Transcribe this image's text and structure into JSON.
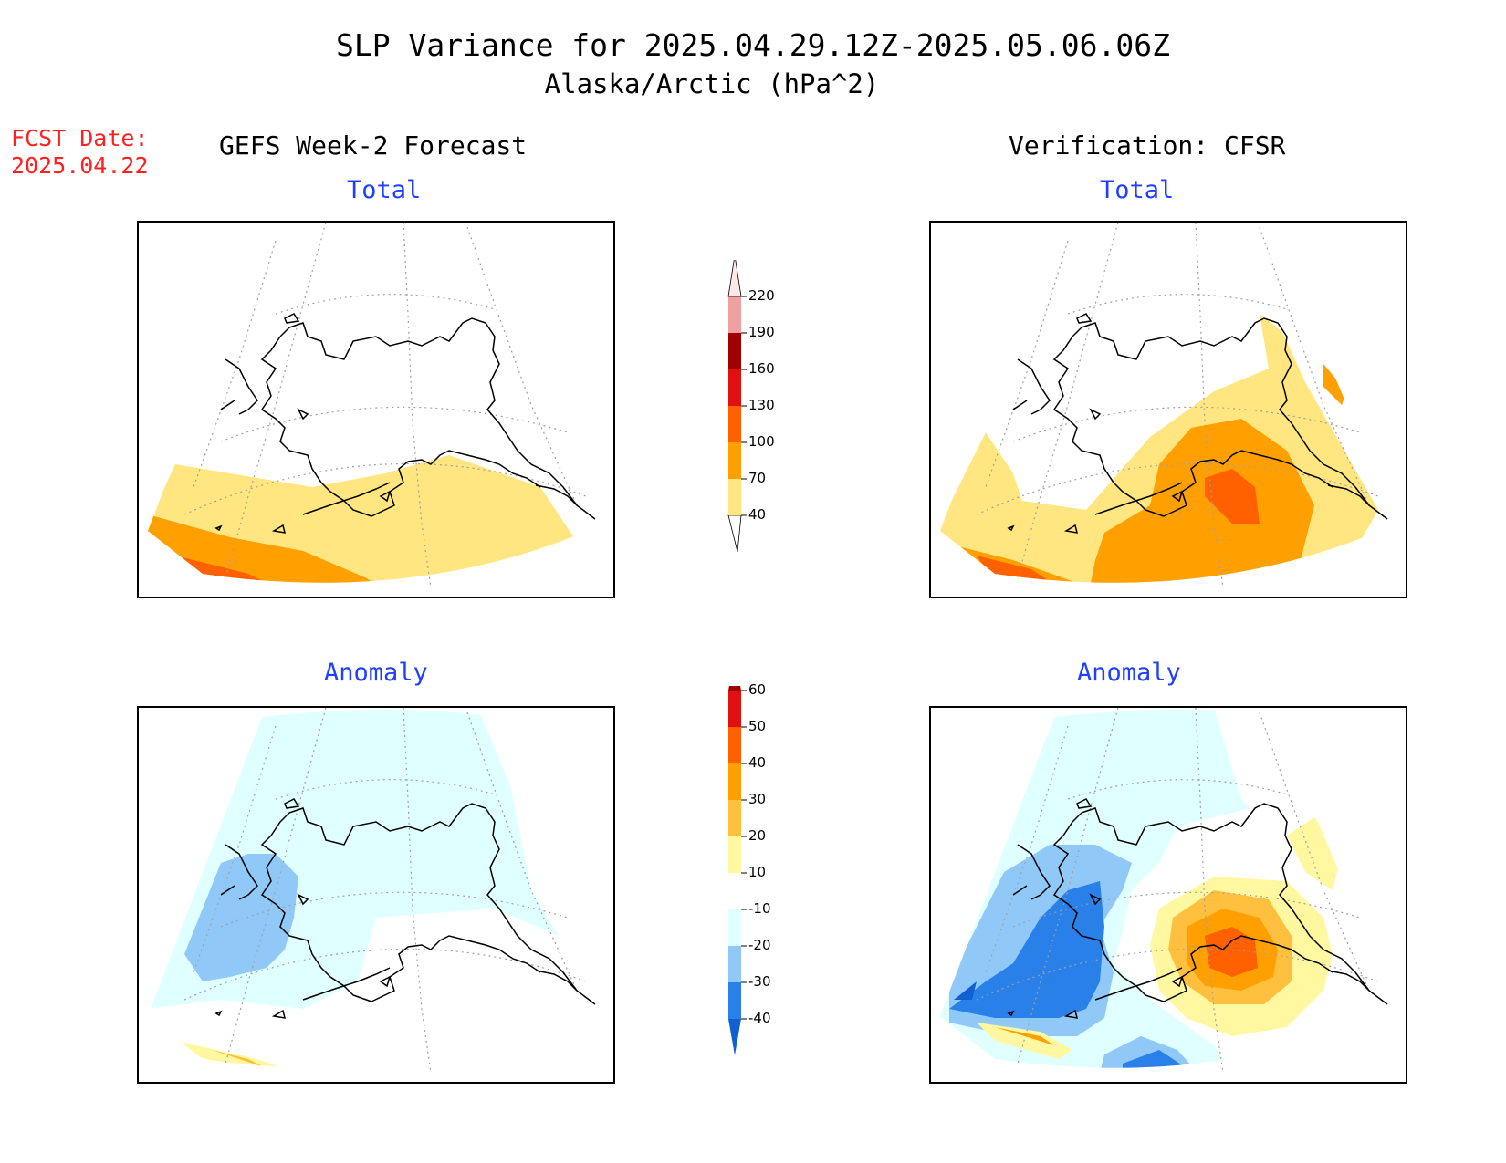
{
  "header": {
    "title": "SLP Variance for 2025.04.29.12Z-2025.05.06.06Z",
    "subtitle": "Alaska/Arctic (hPa^2)",
    "fcst_date_label": "FCST Date:",
    "fcst_date_value": "2025.04.22"
  },
  "columns": {
    "left": "GEFS Week-2 Forecast",
    "right": "Verification: CFSR"
  },
  "panels": {
    "forecast_total": "Total",
    "forecast_anomaly": "Anomaly",
    "verification_total": "Total",
    "verification_anomaly": "Anomaly"
  },
  "total_colorbar": {
    "ticks": [
      "40",
      "70",
      "100",
      "130",
      "160",
      "190",
      "220"
    ],
    "colors": [
      "#ffe680",
      "#ffa000",
      "#ff6000",
      "#e01010",
      "#a00000",
      "#f0a0a0",
      "#ffe8e8"
    ]
  },
  "anomaly_colorbar": {
    "ticks": [
      "-40",
      "-30",
      "-20",
      "-10",
      "10",
      "20",
      "30",
      "40",
      "50",
      "60"
    ],
    "colors": [
      "#1060d0",
      "#2880e8",
      "#90c8f8",
      "#e0ffff",
      "#ffffff",
      "#fff8a0",
      "#ffc040",
      "#ffa000",
      "#ff6000",
      "#e01010",
      "#a00000"
    ]
  },
  "shading_colors": {
    "light_yellow": "#ffe680",
    "orange": "#ffa000",
    "dark_orange": "#ff6000",
    "pale_yellow": "#fff8a0",
    "light_orange": "#ffc040",
    "pale_cyan": "#e0ffff",
    "light_blue": "#90c8f8",
    "mid_blue": "#2880e8",
    "dark_blue": "#1060d0"
  }
}
